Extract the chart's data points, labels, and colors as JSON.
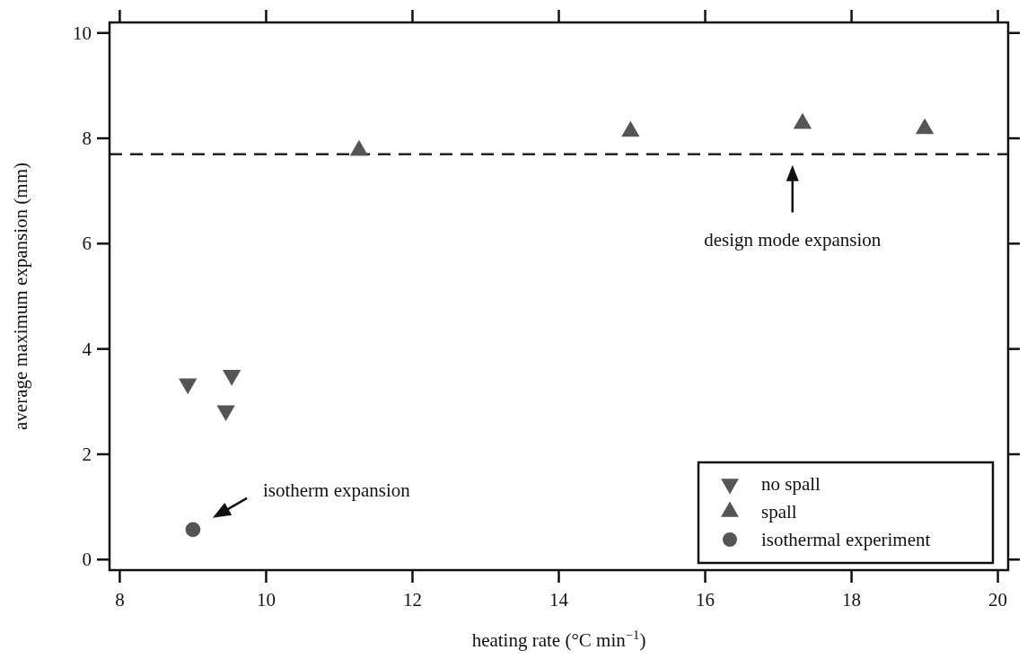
{
  "chart_data": {
    "type": "scatter",
    "xlabel": "heating rate (°C min$^{−1}$)",
    "ylabel": "average maximum expansion (mm)",
    "xlim": [
      7.86,
      20.14
    ],
    "ylim": [
      -0.2,
      10.2
    ],
    "xticks": [
      8,
      10,
      12,
      14,
      16,
      18,
      20
    ],
    "yticks": [
      0,
      2,
      4,
      6,
      8,
      10
    ],
    "grid": false,
    "legend": "bottom right",
    "series": [
      {
        "name": "no spall",
        "color": "#555555",
        "marker": "triangle-down",
        "x": [
          8.93,
          9.45,
          9.53
        ],
        "values": [
          3.34,
          2.83,
          3.5
        ]
      },
      {
        "name": "spall",
        "color": "#555555",
        "marker": "triangle",
        "x": [
          11.27,
          14.98,
          17.33,
          19.0
        ],
        "values": [
          7.77,
          8.13,
          8.28,
          8.18
        ]
      },
      {
        "name": "isothermal experiment",
        "color": "#555555",
        "marker": "circle",
        "x": [
          9.0
        ],
        "values": [
          0.57
        ]
      }
    ],
    "ref_lines": [
      {
        "axis": "y",
        "value": 7.7,
        "color": "#222222",
        "line_style": "dashed"
      }
    ],
    "annotations": [
      "design mode expansion",
      "isotherm expansion"
    ]
  }
}
